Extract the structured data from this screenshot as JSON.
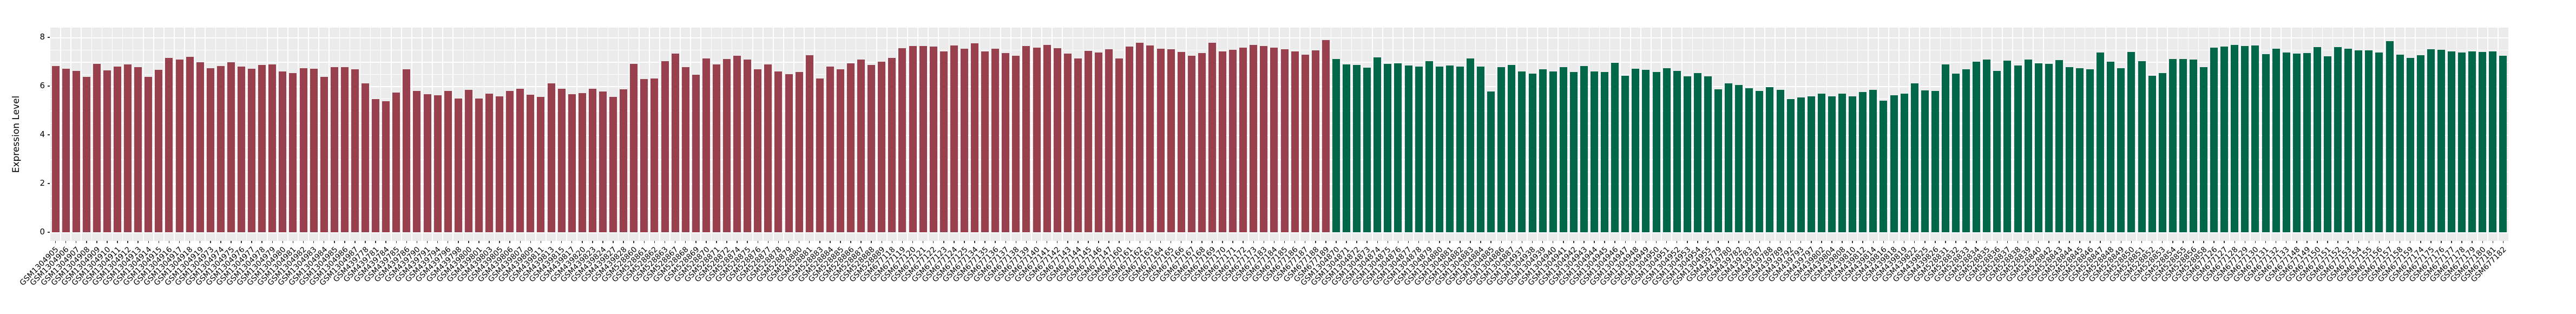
{
  "chart_data": {
    "type": "bar",
    "title": "",
    "xlabel": "",
    "ylabel": "Expression Level",
    "ylim": [
      0,
      8
    ],
    "yticks": [
      0,
      2,
      4,
      6,
      8
    ],
    "grid": true,
    "legend": "none",
    "panel_bg": "#EBEBEB",
    "grid_color": "#FFFFFF",
    "axis_text_color": "#000000",
    "groups": [
      {
        "name": "red",
        "color": "#99404F",
        "categories": [
          "GSM1304905",
          "GSM1304906",
          "GSM1304907",
          "GSM1304908",
          "GSM1304909",
          "GSM1304910",
          "GSM1304911",
          "GSM1304912",
          "GSM1304913",
          "GSM1304914",
          "GSM1304915",
          "GSM1304916",
          "GSM1304917",
          "GSM1304918",
          "GSM1304919",
          "GSM1304973",
          "GSM1304974",
          "GSM1304975",
          "GSM1304976",
          "GSM1304977",
          "GSM1304978",
          "GSM1304979",
          "GSM1304980",
          "GSM1304981",
          "GSM1304982",
          "GSM1304983",
          "GSM1304984",
          "GSM1304985",
          "GSM1304986",
          "GSM1304987",
          "GSM439778",
          "GSM439781",
          "GSM439784",
          "GSM439785",
          "GSM439786",
          "GSM439790",
          "GSM439791",
          "GSM439794",
          "GSM439796",
          "GSM439798",
          "GSM439800",
          "GSM439801",
          "GSM439803",
          "GSM439805",
          "GSM439806",
          "GSM439807",
          "GSM439809",
          "GSM439811",
          "GSM439813",
          "GSM439815",
          "GSM439817",
          "GSM439820",
          "GSM439823",
          "GSM439824",
          "GSM439827",
          "GSM439828",
          "GSM528860",
          "GSM528861",
          "GSM528862",
          "GSM528863",
          "GSM528867",
          "GSM528868",
          "GSM528869",
          "GSM528870",
          "GSM528871",
          "GSM528872",
          "GSM528874",
          "GSM528875",
          "GSM528876",
          "GSM528877",
          "GSM528878",
          "GSM528879",
          "GSM528880",
          "GSM528881",
          "GSM528883",
          "GSM528884",
          "GSM528885",
          "GSM528886",
          "GSM528887",
          "GSM528888",
          "GSM528889",
          "GSM677118",
          "GSM677119",
          "GSM677120",
          "GSM677121",
          "GSM677122",
          "GSM677123",
          "GSM677124",
          "GSM677125",
          "GSM677134",
          "GSM677135",
          "GSM677136",
          "GSM677137",
          "GSM677138",
          "GSM677139",
          "GSM677140",
          "GSM677141",
          "GSM677142",
          "GSM677143",
          "GSM677144",
          "GSM677145",
          "GSM677146",
          "GSM677147",
          "GSM677160",
          "GSM677161",
          "GSM677162",
          "GSM677163",
          "GSM677164",
          "GSM677165",
          "GSM677166",
          "GSM677167",
          "GSM677168",
          "GSM677169",
          "GSM677170",
          "GSM677171",
          "GSM677172",
          "GSM677173",
          "GSM677183",
          "GSM677184",
          "GSM677185",
          "GSM677186",
          "GSM677187",
          "GSM677188",
          "GSM677189"
        ],
        "values": [
          6.83,
          6.71,
          6.62,
          6.38,
          6.91,
          6.64,
          6.79,
          6.9,
          6.77,
          6.37,
          6.66,
          7.15,
          7.1,
          7.21,
          6.97,
          6.73,
          6.83,
          6.97,
          6.8,
          6.71,
          6.86,
          6.89,
          6.59,
          6.53,
          6.74,
          6.71,
          6.37,
          6.77,
          6.77,
          6.68,
          6.12,
          5.46,
          5.37,
          5.73,
          6.69,
          5.8,
          5.66,
          5.62,
          5.8,
          5.5,
          5.84,
          5.5,
          5.7,
          5.58,
          5.79,
          5.88,
          5.64,
          5.55,
          6.12,
          5.9,
          5.67,
          5.71,
          5.88,
          5.77,
          5.56,
          5.86,
          6.91,
          6.29,
          6.31,
          7.03,
          7.34,
          6.77,
          6.47,
          7.14,
          6.89,
          7.11,
          7.25,
          7.09,
          6.68,
          6.9,
          6.59,
          6.49,
          6.57,
          7.26,
          6.32,
          6.79,
          6.7,
          6.93,
          7.09,
          6.87,
          6.99,
          7.16,
          7.56,
          7.65,
          7.65,
          7.62,
          7.42,
          7.66,
          7.53,
          7.76,
          7.42,
          7.54,
          7.36,
          7.25,
          7.64,
          7.57,
          7.7,
          7.55,
          7.34,
          7.14,
          7.44,
          7.37,
          7.51,
          7.14,
          7.63,
          7.77,
          7.67,
          7.54,
          7.51,
          7.39,
          7.25,
          7.36,
          7.77,
          7.43,
          7.49,
          7.58,
          7.69,
          7.65,
          7.57,
          7.51,
          7.42,
          7.3,
          7.46,
          7.88
        ]
      },
      {
        "name": "green",
        "color": "#006849",
        "categories": [
          "GSM1304870",
          "GSM1304871",
          "GSM1304872",
          "GSM1304873",
          "GSM1304874",
          "GSM1304875",
          "GSM1304876",
          "GSM1304877",
          "GSM1304878",
          "GSM1304879",
          "GSM1304880",
          "GSM1304881",
          "GSM1304882",
          "GSM1304883",
          "GSM1304884",
          "GSM1304885",
          "GSM1304886",
          "GSM1304887",
          "GSM1304937",
          "GSM1304938",
          "GSM1304939",
          "GSM1304940",
          "GSM1304941",
          "GSM1304942",
          "GSM1304943",
          "GSM1304944",
          "GSM1304945",
          "GSM1304946",
          "GSM1304947",
          "GSM1304948",
          "GSM1304949",
          "GSM1304950",
          "GSM1304951",
          "GSM1304952",
          "GSM1304953",
          "GSM1304954",
          "GSM1304955",
          "GSM439779",
          "GSM439780",
          "GSM439782",
          "GSM439783",
          "GSM439787",
          "GSM439788",
          "GSM439789",
          "GSM439792",
          "GSM439793",
          "GSM439797",
          "GSM439802",
          "GSM439804",
          "GSM439808",
          "GSM439810",
          "GSM439812",
          "GSM439814",
          "GSM439816",
          "GSM439818",
          "GSM439819",
          "GSM439822",
          "GSM439825",
          "GSM439826",
          "GSM528831",
          "GSM528832",
          "GSM528833",
          "GSM528834",
          "GSM528835",
          "GSM528836",
          "GSM528837",
          "GSM528838",
          "GSM528839",
          "GSM528840",
          "GSM528842",
          "GSM528843",
          "GSM528844",
          "GSM528845",
          "GSM528846",
          "GSM528847",
          "GSM528848",
          "GSM528849",
          "GSM528850",
          "GSM528851",
          "GSM528852",
          "GSM528853",
          "GSM528854",
          "GSM528855",
          "GSM528856",
          "GSM528858",
          "GSM677126",
          "GSM677127",
          "GSM677128",
          "GSM677129",
          "GSM677130",
          "GSM677131",
          "GSM677132",
          "GSM677133",
          "GSM677148",
          "GSM677149",
          "GSM677150",
          "GSM677151",
          "GSM677152",
          "GSM677153",
          "GSM677154",
          "GSM677155",
          "GSM677156",
          "GSM677157",
          "GSM677158",
          "GSM677159",
          "GSM677174",
          "GSM677175",
          "GSM677176",
          "GSM677177",
          "GSM677178",
          "GSM677179",
          "GSM677180",
          "GSM677181",
          "GSM677182"
        ],
        "values": [
          7.12,
          6.89,
          6.86,
          6.75,
          7.18,
          6.92,
          6.94,
          6.84,
          6.79,
          7.03,
          6.8,
          6.84,
          6.81,
          7.13,
          6.81,
          5.77,
          6.77,
          6.87,
          6.59,
          6.52,
          6.7,
          6.6,
          6.77,
          6.57,
          6.83,
          6.59,
          6.57,
          6.95,
          6.43,
          6.71,
          6.66,
          6.58,
          6.73,
          6.63,
          6.4,
          6.53,
          6.41,
          5.86,
          6.12,
          6.04,
          5.92,
          5.8,
          5.95,
          5.84,
          5.46,
          5.53,
          5.57,
          5.7,
          5.57,
          5.68,
          5.57,
          5.75,
          5.85,
          5.4,
          5.63,
          5.68,
          6.12,
          5.83,
          5.79,
          6.89,
          6.52,
          6.68,
          6.99,
          7.09,
          6.63,
          7.05,
          6.84,
          7.1,
          6.94,
          6.92,
          7.06,
          6.77,
          6.74,
          6.7,
          7.37,
          6.99,
          6.73,
          7.4,
          7.03,
          6.42,
          6.54,
          7.12,
          7.11,
          7.09,
          6.77,
          7.58,
          7.62,
          7.68,
          7.65,
          7.66,
          7.31,
          7.54,
          7.38,
          7.34,
          7.36,
          7.59,
          7.23,
          7.6,
          7.54,
          7.46,
          7.47,
          7.37,
          7.85,
          7.29,
          7.16,
          7.27,
          7.51,
          7.48,
          7.42,
          7.37,
          7.42,
          7.4,
          7.42,
          7.25
        ]
      }
    ]
  }
}
